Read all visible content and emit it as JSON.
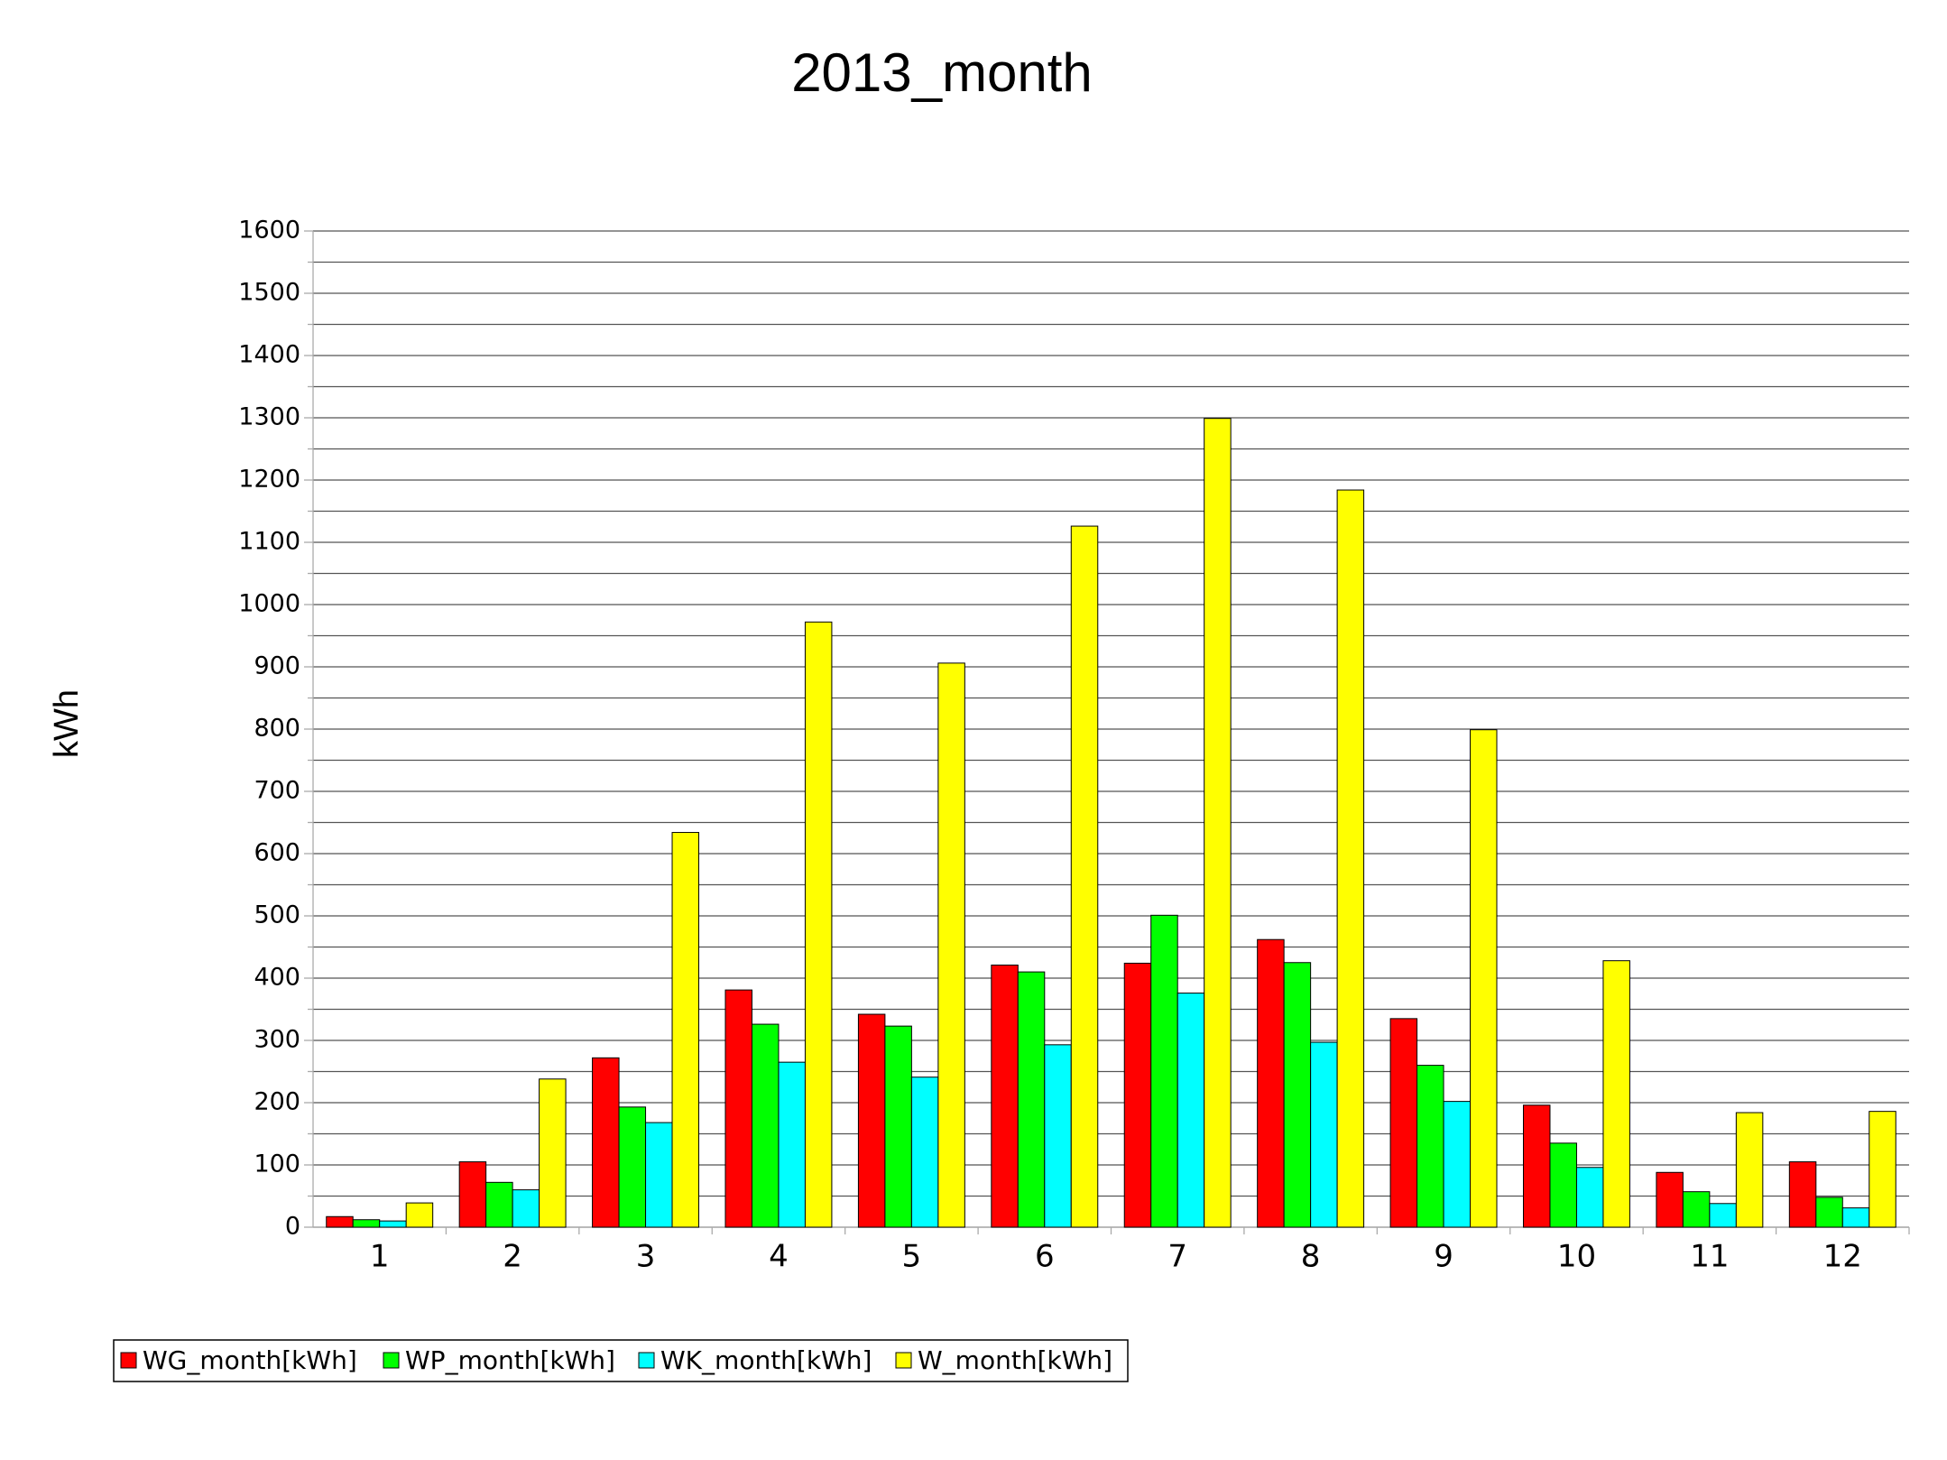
{
  "chart_data": {
    "type": "bar",
    "title": "2013_month",
    "y_label": "kWh",
    "categories": [
      "1",
      "2",
      "3",
      "4",
      "5",
      "6",
      "7",
      "8",
      "9",
      "10",
      "11",
      "12"
    ],
    "series": [
      {
        "name": "WG_month[kWh]",
        "color": "#ff0000",
        "values": [
          17,
          105,
          272,
          381,
          342,
          421,
          424,
          462,
          335,
          196,
          88,
          105
        ]
      },
      {
        "name": "WP_month[kWh]",
        "color": "#00ff00",
        "values": [
          12,
          72,
          193,
          326,
          323,
          410,
          501,
          425,
          260,
          135,
          57,
          48
        ]
      },
      {
        "name": "WK_month[kWh]",
        "color": "#00ffff",
        "values": [
          10,
          60,
          168,
          265,
          241,
          293,
          376,
          297,
          202,
          96,
          38,
          31
        ]
      },
      {
        "name": "W_month[kWh]",
        "color": "#ffff00",
        "values": [
          39,
          238,
          634,
          972,
          906,
          1126,
          1299,
          1184,
          799,
          428,
          184,
          186
        ]
      }
    ],
    "ylim": [
      0,
      1600
    ],
    "yticks": [
      0,
      100,
      200,
      300,
      400,
      500,
      600,
      700,
      800,
      900,
      1000,
      1100,
      1200,
      1300,
      1400,
      1500,
      1600
    ],
    "y_minor_ticks": [
      50,
      150,
      250,
      350,
      450,
      550,
      650,
      750,
      850,
      950,
      1050,
      1150,
      1250,
      1350,
      1450,
      1550
    ],
    "grid": true,
    "legend": "bottom-left"
  }
}
